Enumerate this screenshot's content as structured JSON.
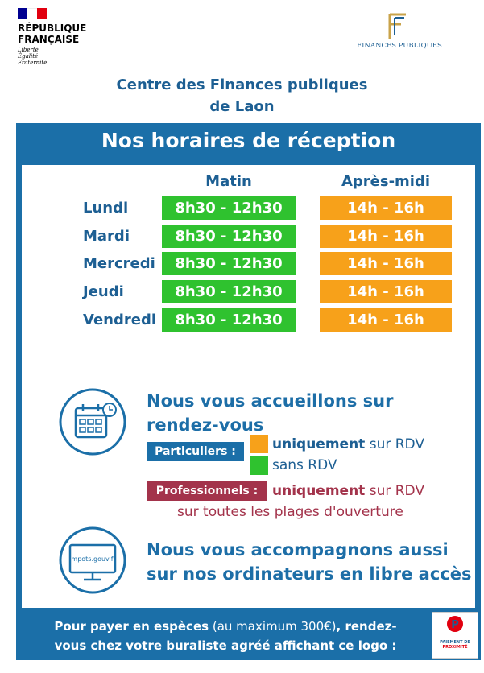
{
  "header": {
    "republique": [
      "RÉPUBLIQUE",
      "FRANÇAISE"
    ],
    "devise": [
      "Liberté",
      "Égalité",
      "Fraternité"
    ],
    "dgfip": "FINANCES PUBLIQUES"
  },
  "title": [
    "Centre des Finances publiques",
    "de Laon"
  ],
  "schedule": {
    "title": "Nos horaires de réception",
    "columns": [
      "Matin",
      "Après-midi"
    ],
    "rows": [
      [
        "Lundi",
        "8h30 - 12h30",
        "14h - 16h"
      ],
      [
        "Mardi",
        "8h30 - 12h30",
        "14h - 16h"
      ],
      [
        "Mercredi",
        "8h30 - 12h30",
        "14h - 16h"
      ],
      [
        "Jeudi",
        "8h30 - 12h30",
        "14h - 16h"
      ],
      [
        "Vendredi",
        "8h30 - 12h30",
        "14h - 16h"
      ]
    ]
  },
  "rdv": {
    "heading": [
      "Nous vous accueillons sur",
      "rendez-vous"
    ],
    "particuliers": {
      "label": "Particuliers :",
      "lines": [
        [
          "uniquement",
          "sur RDV"
        ],
        [
          "sans RDV"
        ]
      ]
    },
    "professionnels": {
      "label": "Professionnels :",
      "lines": [
        [
          "uniquement",
          "sur RDV"
        ],
        [
          "sur toutes les plages d'ouverture"
        ]
      ]
    }
  },
  "ordinateurs": {
    "icon_text": "impots.gouv.fr",
    "heading": [
      "Nous vous accompagnons aussi",
      "sur nos ordinateurs en libre accès"
    ]
  },
  "footer": {
    "line1": [
      "Pour payer en espèces",
      "(au maximum 300€)",
      ", rendez-"
    ],
    "line2": "vous chez votre buraliste agréé affichant ce logo :",
    "logo": [
      "PAIEMENT DE",
      "PROXIMITÉ"
    ]
  }
}
